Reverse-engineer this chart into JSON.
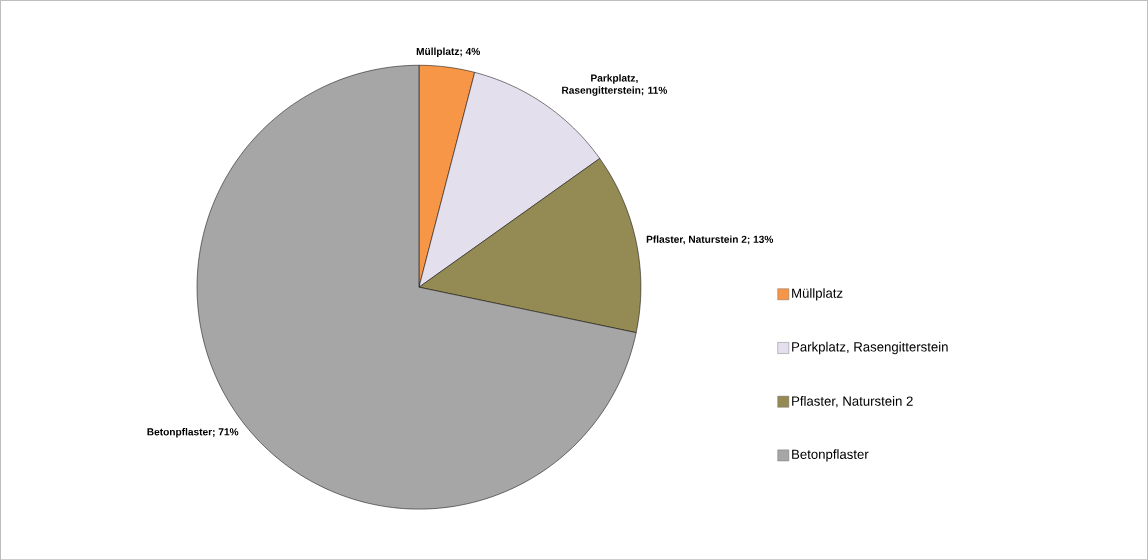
{
  "chart_data": {
    "type": "pie",
    "categories": [
      "Müllplatz",
      "Parkplatz, Rasengitterstein",
      "Pflaster, Naturstein 2",
      "Betonpflaster"
    ],
    "values": [
      4,
      11,
      13,
      71
    ],
    "colors": [
      "#f79646",
      "#e4dfec",
      "#948a54",
      "#a6a6a6"
    ],
    "value_labels": [
      "Müllplatz; 4%",
      "Parkplatz, Rasengitterstein; 11%",
      "Pflaster, Naturstein 2; 13%",
      "Betonpflaster; 71%"
    ],
    "legend": "right"
  }
}
